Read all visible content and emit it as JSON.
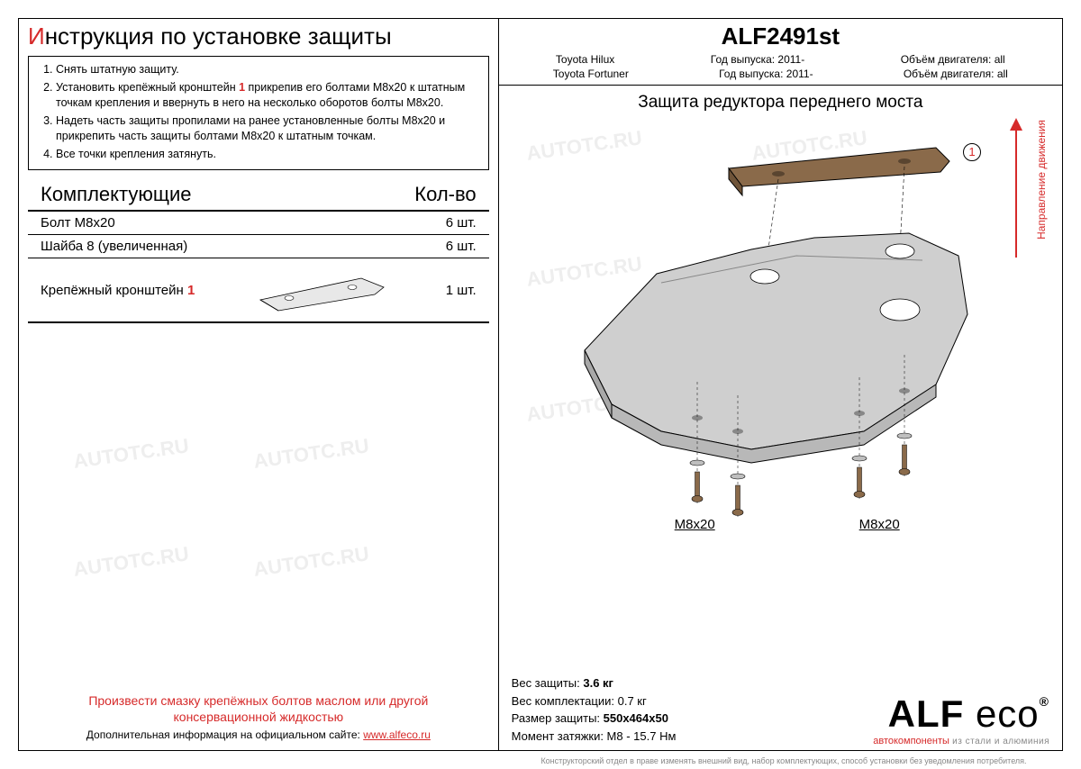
{
  "left": {
    "title_first": "И",
    "title_rest": "нструкция по установке защиты",
    "instructions": [
      "Снять штатную защиту.",
      "Установить крепёжный кронштейн |1| прикрепив его болтами М8х20 к штатным точкам крепления и ввернуть в него на несколько оборотов болты М8х20.",
      "Надеть часть защиты пропилами на ранее установленные болты М8х20 и прикрепить часть защиты болтами М8х20 к штатным точкам.",
      "Все точки крепления затянуть."
    ],
    "comp_head_l": "Комплектующие",
    "comp_head_r": "Кол-во",
    "components": [
      {
        "name": "Болт М8х20",
        "qty": "6 шт."
      },
      {
        "name": "Шайба 8 (увеличенная)",
        "qty": "6 шт."
      }
    ],
    "bracket_name_pre": "Крепёжный кронштейн ",
    "bracket_num": "1",
    "bracket_qty": "1 шт.",
    "footnote1": "Произвести смазку крепёжных болтов маслом или другой консервационной жидкостью",
    "footnote2_pre": "Дополнительная информация на официальном сайте: ",
    "footnote2_link": "www.alfeco.ru"
  },
  "right": {
    "product": "ALF2491st",
    "row1": {
      "a": "Toyota Hilux",
      "b": "Год выпуска: 2011-",
      "c": "Объём двигателя: all"
    },
    "row2": {
      "a": "Toyota Fortuner",
      "b": "Год выпуска: 2011-",
      "c": "Объём двигателя: all"
    },
    "subtitle": "Защита редуктора переднего моста",
    "direction": "Направление движения",
    "callout1": "1",
    "bolt_label": "М8х20",
    "specs": {
      "l1a": "Вес защиты: ",
      "l1b": "3.6 кг",
      "l2": "Вес комплектации: 0.7 кг",
      "l3a": "Размер защиты: ",
      "l3b": "550х464х50",
      "l4": "Момент затяжки:  М8 - 15.7 Нм"
    },
    "logo": {
      "main": "ALF eco",
      "reg": "®",
      "auto": "автокомпоненты",
      "sub": " из стали и алюминия"
    },
    "disclaimer": "Конструкторский отдел в праве изменять внешний вид, набор комплектующих, способ установки без уведомления потребителя."
  },
  "colors": {
    "red": "#d62a2a",
    "brown": "#8a6a4a",
    "grey": "#bfbfbf"
  }
}
